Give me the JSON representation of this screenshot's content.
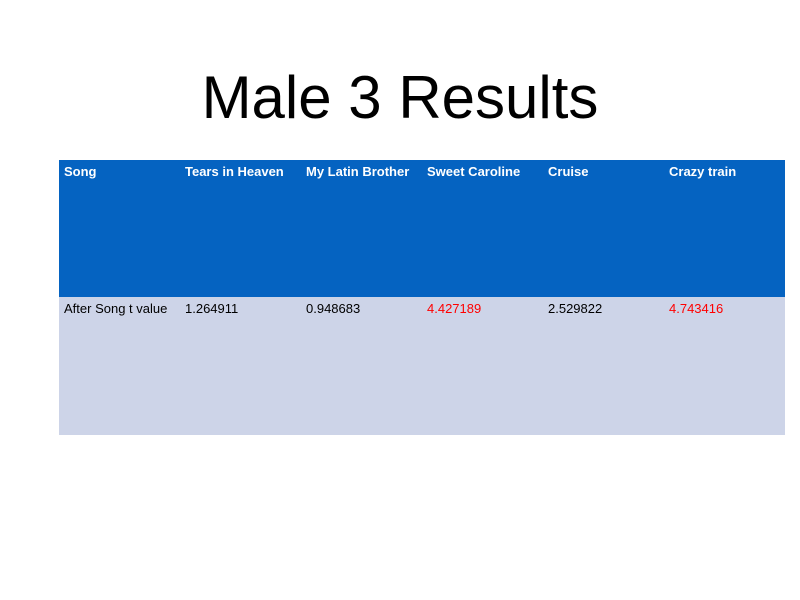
{
  "title": "Male 3 Results",
  "table": {
    "header": [
      "Song",
      "Tears in Heaven",
      "My Latin Brother",
      "Sweet Caroline",
      "Cruise",
      "Crazy train"
    ],
    "rows": [
      [
        "After Song t value",
        "1.264911",
        "0.948683",
        "4.427189",
        "2.529822",
        "4.743416"
      ]
    ],
    "cell_colors": [
      [
        "#000000",
        "#000000",
        "#000000",
        "#ff0000",
        "#000000",
        "#ff0000"
      ]
    ]
  }
}
